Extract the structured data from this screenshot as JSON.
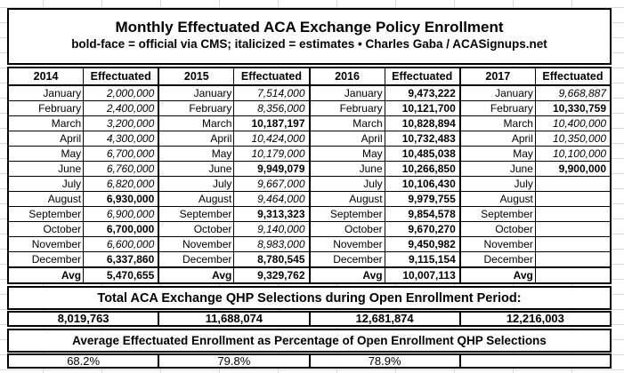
{
  "title_block": {
    "title": "Monthly Effectuated ACA Exchange Policy Enrollment",
    "subtitle": "bold-face = official via CMS; italicized = estimates  •  Charles Gaba / ACASignups.net"
  },
  "table": {
    "value_header": "Effectuated",
    "avg_label": "Avg",
    "months": [
      "January",
      "February",
      "March",
      "April",
      "May",
      "June",
      "July",
      "August",
      "September",
      "October",
      "November",
      "December"
    ],
    "columns": [
      {
        "year": "2014",
        "values": [
          {
            "v": "2,000,000",
            "s": "est"
          },
          {
            "v": "2,400,000",
            "s": "est"
          },
          {
            "v": "3,200,000",
            "s": "est"
          },
          {
            "v": "4,300,000",
            "s": "est"
          },
          {
            "v": "6,700,000",
            "s": "est"
          },
          {
            "v": "6,760,000",
            "s": "est"
          },
          {
            "v": "6,820,000",
            "s": "est"
          },
          {
            "v": "6,930,000",
            "s": "off"
          },
          {
            "v": "6,900,000",
            "s": "est"
          },
          {
            "v": "6,700,000",
            "s": "off"
          },
          {
            "v": "6,600,000",
            "s": "est"
          },
          {
            "v": "6,337,860",
            "s": "off"
          }
        ],
        "avg": {
          "v": "5,470,655",
          "s": "off"
        }
      },
      {
        "year": "2015",
        "values": [
          {
            "v": "7,514,000",
            "s": "est"
          },
          {
            "v": "8,356,000",
            "s": "est"
          },
          {
            "v": "10,187,197",
            "s": "off"
          },
          {
            "v": "10,424,000",
            "s": "est"
          },
          {
            "v": "10,179,000",
            "s": "est"
          },
          {
            "v": "9,949,079",
            "s": "off"
          },
          {
            "v": "9,667,000",
            "s": "est"
          },
          {
            "v": "9,464,000",
            "s": "est"
          },
          {
            "v": "9,313,323",
            "s": "off"
          },
          {
            "v": "9,140,000",
            "s": "est"
          },
          {
            "v": "8,983,000",
            "s": "est"
          },
          {
            "v": "8,780,545",
            "s": "off"
          }
        ],
        "avg": {
          "v": "9,329,762",
          "s": "off"
        }
      },
      {
        "year": "2016",
        "values": [
          {
            "v": "9,473,222",
            "s": "off"
          },
          {
            "v": "10,121,700",
            "s": "off"
          },
          {
            "v": "10,828,894",
            "s": "off"
          },
          {
            "v": "10,732,483",
            "s": "off"
          },
          {
            "v": "10,485,038",
            "s": "off"
          },
          {
            "v": "10,266,850",
            "s": "off"
          },
          {
            "v": "10,106,430",
            "s": "off"
          },
          {
            "v": "9,979,755",
            "s": "off"
          },
          {
            "v": "9,854,578",
            "s": "off"
          },
          {
            "v": "9,670,270",
            "s": "off"
          },
          {
            "v": "9,450,982",
            "s": "off"
          },
          {
            "v": "9,115,154",
            "s": "off"
          }
        ],
        "avg": {
          "v": "10,007,113",
          "s": "off"
        }
      },
      {
        "year": "2017",
        "values": [
          {
            "v": "9,668,887",
            "s": "est"
          },
          {
            "v": "10,330,759",
            "s": "off"
          },
          {
            "v": "10,400,000",
            "s": "est"
          },
          {
            "v": "10,350,000",
            "s": "est"
          },
          {
            "v": "10,100,000",
            "s": "est"
          },
          {
            "v": "9,900,000",
            "s": "off"
          },
          {
            "v": "",
            "s": ""
          },
          {
            "v": "",
            "s": ""
          },
          {
            "v": "",
            "s": ""
          },
          {
            "v": "",
            "s": ""
          },
          {
            "v": "",
            "s": ""
          },
          {
            "v": "",
            "s": ""
          }
        ],
        "avg": {
          "v": "",
          "s": ""
        }
      }
    ]
  },
  "totals_section": {
    "heading": "Total ACA Exchange QHP Selections during Open Enrollment Period:",
    "values": [
      "8,019,763",
      "11,688,074",
      "12,681,874",
      "12,216,003"
    ]
  },
  "percent_section": {
    "heading": "Average Effectuated Enrollment as Percentage of Open Enrollment QHP Selections",
    "values": [
      "68.2%",
      "79.8%",
      "78.9%",
      ""
    ]
  },
  "legend": {
    "bold_means": "official via CMS",
    "italic_means": "estimates",
    "credit": "Charles Gaba / ACASignups.net"
  },
  "colors": {
    "background": "#ffffff",
    "text": "#000000",
    "border": "#000000",
    "gridline": "#d9d9d9"
  },
  "chart_data": {
    "type": "table",
    "title": "Monthly Effectuated ACA Exchange Policy Enrollment",
    "subtitle": "bold-face = official via CMS; italicized = estimates • Charles Gaba / ACASignups.net",
    "categories": [
      "January",
      "February",
      "March",
      "April",
      "May",
      "June",
      "July",
      "August",
      "September",
      "October",
      "November",
      "December"
    ],
    "series": [
      {
        "name": "2014",
        "values": [
          2000000,
          2400000,
          3200000,
          4300000,
          6700000,
          6760000,
          6820000,
          6930000,
          6900000,
          6700000,
          6600000,
          6337860
        ],
        "avg": 5470655,
        "qhp_selections": 8019763,
        "pct_of_selections": 68.2
      },
      {
        "name": "2015",
        "values": [
          7514000,
          8356000,
          10187197,
          10424000,
          10179000,
          9949079,
          9667000,
          9464000,
          9313323,
          9140000,
          8983000,
          8780545
        ],
        "avg": 9329762,
        "qhp_selections": 11688074,
        "pct_of_selections": 79.8
      },
      {
        "name": "2016",
        "values": [
          9473222,
          10121700,
          10828894,
          10732483,
          10485038,
          10266850,
          10106430,
          9979755,
          9854578,
          9670270,
          9450982,
          9115154
        ],
        "avg": 10007113,
        "qhp_selections": 12681874,
        "pct_of_selections": 78.9
      },
      {
        "name": "2017",
        "values": [
          9668887,
          10330759,
          10400000,
          10350000,
          10100000,
          9900000,
          null,
          null,
          null,
          null,
          null,
          null
        ],
        "avg": null,
        "qhp_selections": 12216003,
        "pct_of_selections": null
      }
    ],
    "totals_heading": "Total ACA Exchange QHP Selections during Open Enrollment Period:",
    "percent_heading": "Average Effectuated Enrollment as Percentage of Open Enrollment QHP Selections"
  }
}
